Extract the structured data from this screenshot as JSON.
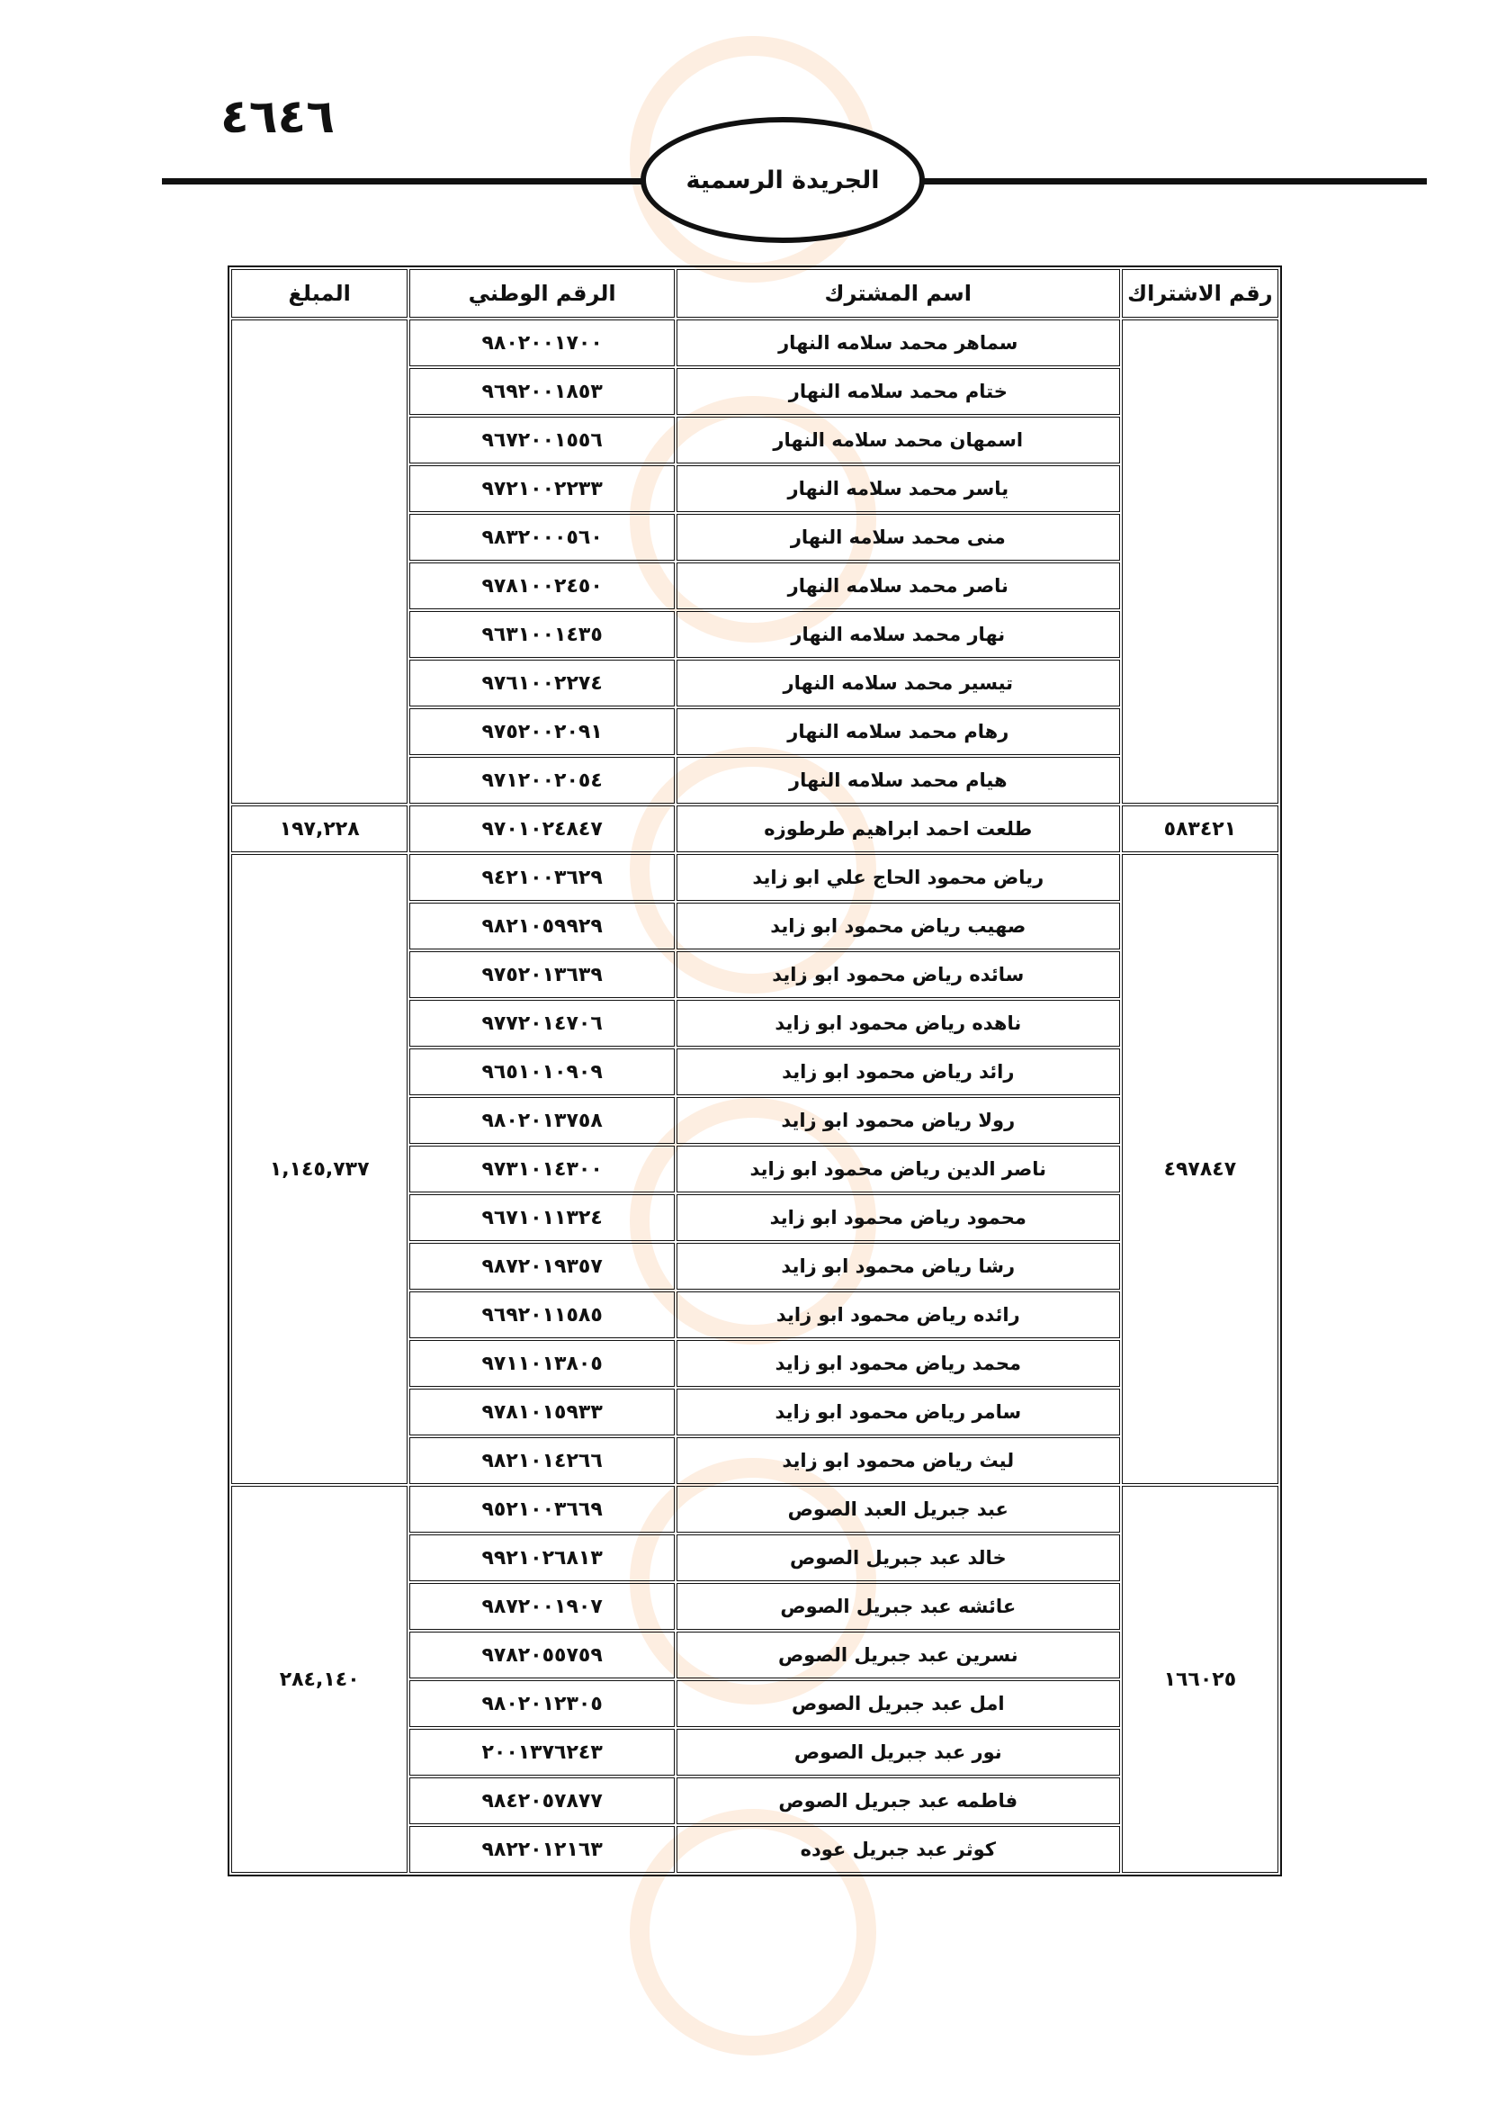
{
  "page_number": "٤٦٤٦",
  "header_title": "الجريدة الرسمية",
  "columns": [
    "رقم الاشتراك",
    "اسم المشترك",
    "الرقم الوطني",
    "المبلغ"
  ],
  "groups": [
    {
      "subscription_no": "",
      "amount": "",
      "members": [
        {
          "name": "سماهر محمد سلامه النهار",
          "national_id": "٩٨٠٢٠٠١٧٠٠"
        },
        {
          "name": "ختام محمد سلامه النهار",
          "national_id": "٩٦٩٢٠٠١٨٥٣"
        },
        {
          "name": "اسمهان محمد سلامه النهار",
          "national_id": "٩٦٧٢٠٠١٥٥٦"
        },
        {
          "name": "ياسر محمد سلامه النهار",
          "national_id": "٩٧٢١٠٠٢٢٣٣"
        },
        {
          "name": "منى محمد سلامه النهار",
          "national_id": "٩٨٣٢٠٠٠٥٦٠"
        },
        {
          "name": "ناصر محمد سلامه النهار",
          "national_id": "٩٧٨١٠٠٢٤٥٠"
        },
        {
          "name": "نهار محمد سلامه النهار",
          "national_id": "٩٦٣١٠٠١٤٣٥"
        },
        {
          "name": "تيسير محمد سلامه النهار",
          "national_id": "٩٧٦١٠٠٢٢٧٤"
        },
        {
          "name": "رهام محمد سلامه النهار",
          "national_id": "٩٧٥٢٠٠٢٠٩١"
        },
        {
          "name": "هيام محمد سلامه النهار",
          "national_id": "٩٧١٢٠٠٢٠٥٤"
        }
      ]
    },
    {
      "subscription_no": "٥٨٣٤٢١",
      "amount": "١٩٧,٢٢٨",
      "members": [
        {
          "name": "طلعت احمد ابراهيم طرطوزه",
          "national_id": "٩٧٠١٠٢٤٨٤٧"
        }
      ]
    },
    {
      "subscription_no": "٤٩٧٨٤٧",
      "amount": "١,١٤٥,٧٣٧",
      "members": [
        {
          "name": "رياض محمود الحاج علي ابو زايد",
          "national_id": "٩٤٢١٠٠٣٦٢٩"
        },
        {
          "name": "صهيب رياض محمود ابو زايد",
          "national_id": "٩٨٢١٠٥٩٩٢٩"
        },
        {
          "name": "سائده رياض محمود ابو زايد",
          "national_id": "٩٧٥٢٠١٣٦٣٩"
        },
        {
          "name": "ناهده رياض محمود ابو زايد",
          "national_id": "٩٧٧٢٠١٤٧٠٦"
        },
        {
          "name": "رائد رياض محمود ابو زايد",
          "national_id": "٩٦٥١٠١٠٩٠٩"
        },
        {
          "name": "رولا رياض محمود ابو زايد",
          "national_id": "٩٨٠٢٠١٣٧٥٨"
        },
        {
          "name": "ناصر الدين رياض محمود ابو زايد",
          "national_id": "٩٧٣١٠١٤٣٠٠"
        },
        {
          "name": "محمود رياض محمود ابو زايد",
          "national_id": "٩٦٧١٠١١٣٢٤"
        },
        {
          "name": "رشا رياض محمود ابو زايد",
          "national_id": "٩٨٧٢٠١٩٣٥٧"
        },
        {
          "name": "رائده رياض محمود ابو زايد",
          "national_id": "٩٦٩٢٠١١٥٨٥"
        },
        {
          "name": "محمد رياض محمود ابو زايد",
          "national_id": "٩٧١١٠١٣٨٠٥"
        },
        {
          "name": "سامر رياض محمود ابو زايد",
          "national_id": "٩٧٨١٠١٥٩٣٣"
        },
        {
          "name": "ليث رياض محمود ابو زايد",
          "national_id": "٩٨٢١٠١٤٢٦٦"
        }
      ]
    },
    {
      "subscription_no": "١٦٦٠٢٥",
      "amount": "٢٨٤,١٤٠",
      "members": [
        {
          "name": "عبد جبريل العبد الصوص",
          "national_id": "٩٥٢١٠٠٣٦٦٩"
        },
        {
          "name": "خالد عبد جبريل الصوص",
          "national_id": "٩٩٢١٠٢٦٨١٣"
        },
        {
          "name": "عائشه عبد جبريل الصوص",
          "national_id": "٩٨٧٢٠٠١٩٠٧"
        },
        {
          "name": "نسرين عبد جبريل الصوص",
          "national_id": "٩٧٨٢٠٥٥٧٥٩"
        },
        {
          "name": "امل عبد جبريل الصوص",
          "national_id": "٩٨٠٢٠١٢٣٠٥"
        },
        {
          "name": "نور عبد جبريل الصوص",
          "national_id": "٢٠٠١٣٧٦٢٤٣"
        },
        {
          "name": "فاطمه عبد جبريل الصوص",
          "national_id": "٩٨٤٢٠٥٧٨٧٧"
        },
        {
          "name": "كوثر عبد جبريل عوده",
          "national_id": "٩٨٢٢٠١٢١٦٣"
        }
      ]
    }
  ]
}
